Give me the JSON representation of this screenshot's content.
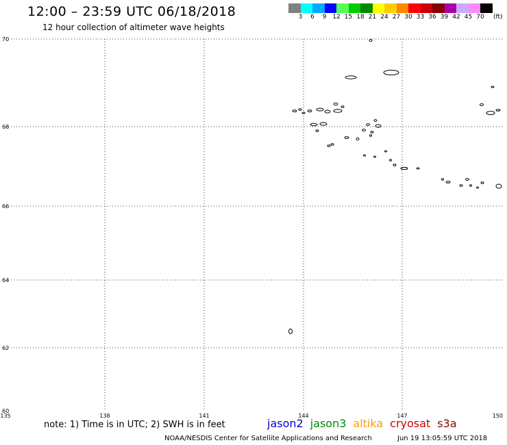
{
  "header": {
    "title": "12:00 – 23:59 UTC 06/18/2018",
    "subtitle": "12 hour collection of altimeter wave heights"
  },
  "scale": {
    "unit": "(ft)",
    "labels": [
      "3",
      "6",
      "9",
      "12",
      "15",
      "18",
      "21",
      "24",
      "27",
      "30",
      "33",
      "36",
      "39",
      "42",
      "45",
      "70"
    ],
    "colors": [
      "#808080",
      "#00ffff",
      "#00aaff",
      "#0000ff",
      "#55ff55",
      "#00cc00",
      "#008800",
      "#ffff00",
      "#ffcc00",
      "#ff8800",
      "#ff0000",
      "#cc0000",
      "#880000",
      "#aa00aa",
      "#ccaaff",
      "#ff88ff",
      "#000000"
    ]
  },
  "axes": {
    "lat_labels": [
      "70",
      "68",
      "66",
      "64",
      "62",
      "60"
    ],
    "lon_labels": [
      "135",
      "138",
      "141",
      "144",
      "147",
      "150"
    ]
  },
  "footer": {
    "note": "note: 1) Time is in UTC; 2) SWH is in feet",
    "missions": [
      {
        "name": "jason2",
        "color": "#0000cc"
      },
      {
        "name": "jason3",
        "color": "#008800"
      },
      {
        "name": "altika",
        "color": "#ff9900"
      },
      {
        "name": "cryosat",
        "color": "#cc0000"
      },
      {
        "name": "s3a",
        "color": "#880000"
      }
    ],
    "credit": "NOAA/NESDIS Center for Satellite Applications and Research",
    "timestamp": "Jun 19 13:05:59 UTC 2018"
  }
}
